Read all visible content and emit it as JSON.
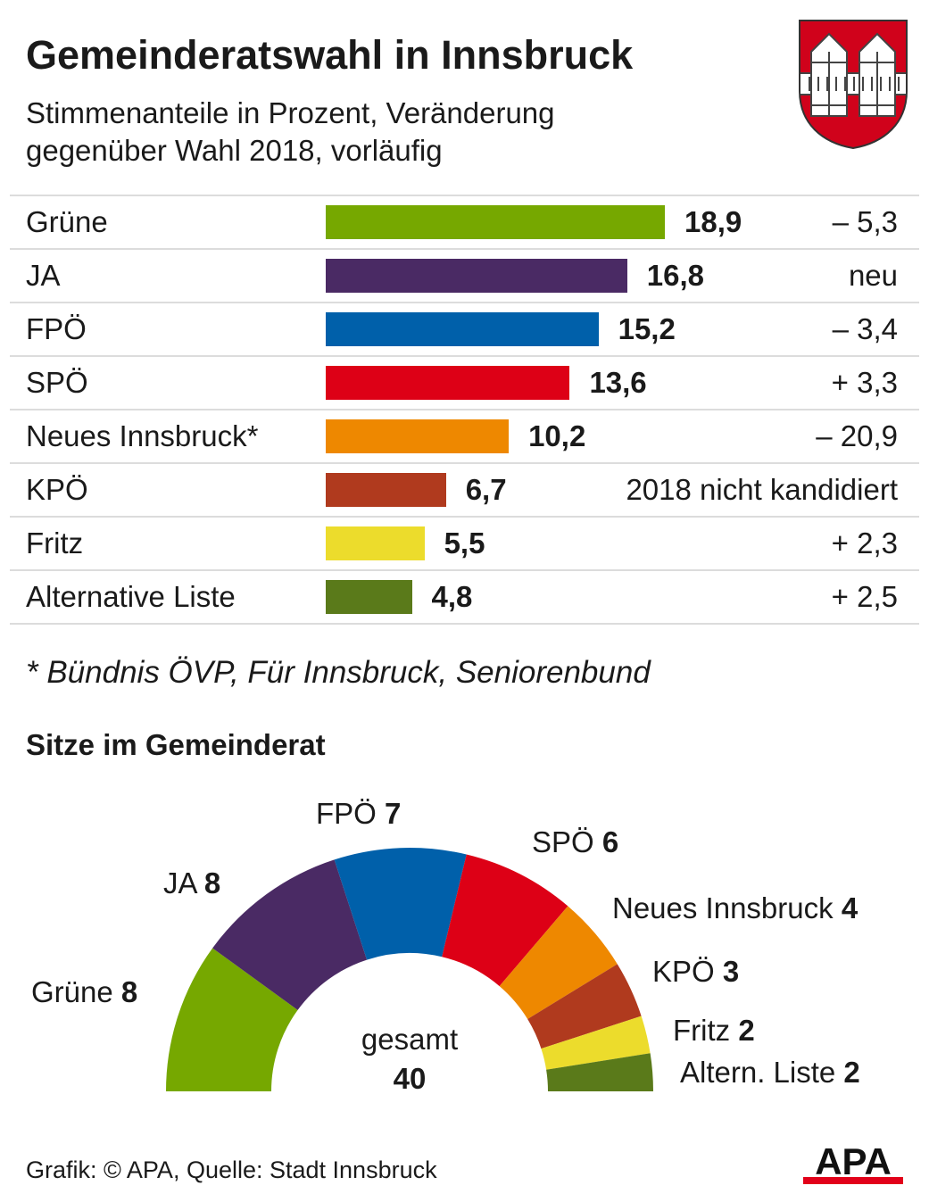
{
  "title": "Gemeinderatswahl in Innsbruck",
  "subtitle_line1": "Stimmenanteile in Prozent, Veränderung",
  "subtitle_line2": "gegenüber Wahl 2018, vorläufig",
  "footnote": "* Bündnis ÖVP, Für Innsbruck, Seniorenbund",
  "seats_title": "Sitze im Gemeinderat",
  "total_label": "gesamt",
  "total_value": "40",
  "source": "Grafik: © APA, Quelle: Stadt Innsbruck",
  "logo_text": "APA",
  "colors": {
    "crest_red": "#d0021b",
    "logo_red": "#e2001a"
  },
  "chart_data": [
    {
      "type": "bar",
      "orientation": "horizontal",
      "unit": "Prozent",
      "xlim": [
        0,
        18.9
      ],
      "categories": [
        "Grüne",
        "JA",
        "FPÖ",
        "SPÖ",
        "Neues Innsbruck*",
        "KPÖ",
        "Fritz",
        "Alternative Liste"
      ],
      "values": [
        18.9,
        16.8,
        15.2,
        13.6,
        10.2,
        6.7,
        5.5,
        4.8
      ],
      "value_labels": [
        "18,9",
        "16,8",
        "15,2",
        "13,6",
        "10,2",
        "6,7",
        "5,5",
        "4,8"
      ],
      "changes": [
        "– 5,3",
        "neu",
        "– 3,4",
        "+ 3,3",
        "– 20,9",
        "2018 nicht kandidiert",
        "+ 2,3",
        "+ 2,5"
      ],
      "colors": [
        "#76a800",
        "#4a2a64",
        "#0060aa",
        "#dd0016",
        "#ee8800",
        "#b03a1e",
        "#ecdc2c",
        "#5a7a1a"
      ]
    },
    {
      "type": "pie",
      "variant": "half-donut",
      "total": 40,
      "labels": [
        "Grüne",
        "JA",
        "FPÖ",
        "SPÖ",
        "Neues Innsbruck",
        "KPÖ",
        "Fritz",
        "Altern. Liste"
      ],
      "values": [
        8,
        8,
        7,
        6,
        4,
        3,
        2,
        2
      ],
      "value_labels": [
        "8",
        "8",
        "7",
        "6",
        "4",
        "3",
        "2",
        "2"
      ],
      "colors": [
        "#76a800",
        "#4a2a64",
        "#0060aa",
        "#dd0016",
        "#ee8800",
        "#b03a1e",
        "#ecdc2c",
        "#5a7a1a"
      ]
    }
  ]
}
